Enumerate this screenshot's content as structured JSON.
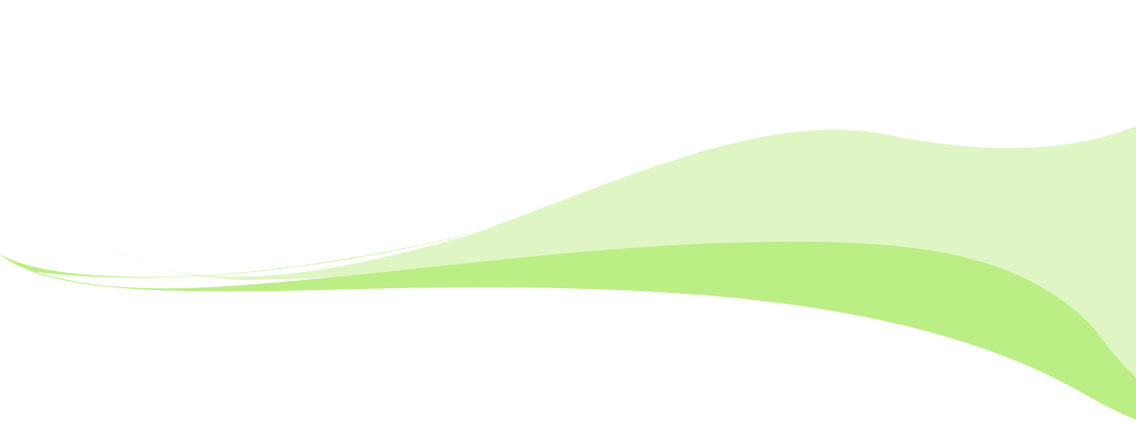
{
  "background_color": "#ffffff",
  "colors": {
    "light_wave": "#dff6c4",
    "medium_wave": "#bbee85"
  }
}
